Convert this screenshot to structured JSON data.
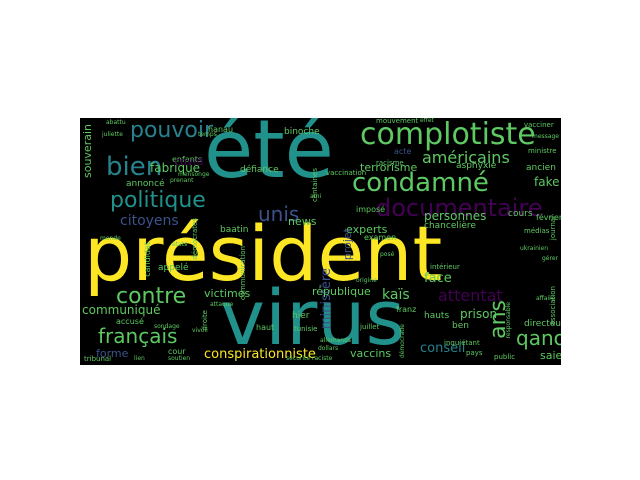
{
  "palette": {
    "yellow": "#fde725",
    "green": "#5ec962",
    "lime": "#7ad151",
    "teal": "#21918c",
    "blue": "#3b528b",
    "purple": "#440154",
    "indigo": "#482878",
    "cyan": "#26828e"
  },
  "words": {
    "president": "président",
    "ete": "été",
    "virus": "virus",
    "complotiste": "complotiste",
    "condamne": "condamné",
    "documentaire": "documentaire",
    "politique": "politique",
    "pouvoir": "pouvoir",
    "bien": "bien",
    "contre": "contre",
    "francais": "français",
    "americains": "américains",
    "qanon": "qanon",
    "ans": "ans",
    "attentat": "attentat",
    "unis": "unis",
    "citoyens": "citoyens",
    "fabrique": "fabrique",
    "communique": "communiqué",
    "forme": "forme",
    "conspirationniste": "conspirationniste",
    "victimes": "victimes",
    "ministere": "ministère",
    "republique": "république",
    "kais": "kaïs",
    "personnes": "personnes",
    "terrorisme": "terrorisme",
    "fake": "fake",
    "experts": "experts",
    "news": "news",
    "face": "face",
    "prison": "prison",
    "conseil": "conseil",
    "vaccins": "vaccins",
    "saied": "saied",
    "souverain": "souverain",
    "binoche": "binoche",
    "hanau": "hanau",
    "defiance": "défiance",
    "annonce": "annoncé",
    "enfants": "enfants",
    "appele": "appelé",
    "accuse": "accusé",
    "asphyxie": "asphyxie",
    "ancien": "ancien",
    "chanceliere": "chancelière",
    "projet": "projet",
    "impose": "imposé",
    "examen": "examen",
    "vaccination": "vaccination",
    "hier": "hier",
    "franz": "franz",
    "hauts": "hauts",
    "ben": "ben",
    "cours": "cours",
    "fevrier": "février",
    "directeur": "directeur",
    "cour": "cour",
    "tribunal": "tribunal",
    "haut": "haut",
    "candidat": "candidat",
    "democrates": "démocrates",
    "droite": "droite",
    "association": "association",
    "journal": "journal",
    "medias": "médias",
    "vacciner": "vacciner",
    "mouvement": "mouvement",
    "acte": "acte",
    "racisme": "racisme",
    "ministre": "ministre",
    "interieur": "intérieur",
    "pays": "pays",
    "inquietant": "inquiétant",
    "public": "public",
    "centaines": "centaines",
    "communication": "communication",
    "covid": "covid",
    "juillet": "juillet",
    "tunisie": "tunisie",
    "raciste": "raciste",
    "securite": "sécurité",
    "monde": "monde",
    "etats": "états",
    "mensonge": "mensonge",
    "juliette": "juliette",
    "abattu": "abattu",
    "temps": "temps",
    "baatin": "baatin",
    "sondage": "sondage",
    "soutien": "soutien",
    "lien": "lien",
    "prenant": "prenant",
    "democratie": "démocratie",
    "attaque": "attaque",
    "ami": "ami",
    "origine": "origine",
    "effet": "effet",
    "allemands": "allemands",
    "vivoli": "vivoli",
    "dollars": "dollars",
    "message": "message",
    "responsable": "responsable",
    "ukrainien": "ukrainien",
    "affaire": "affaire",
    "gerer": "gérer",
    "pose": "posé"
  }
}
